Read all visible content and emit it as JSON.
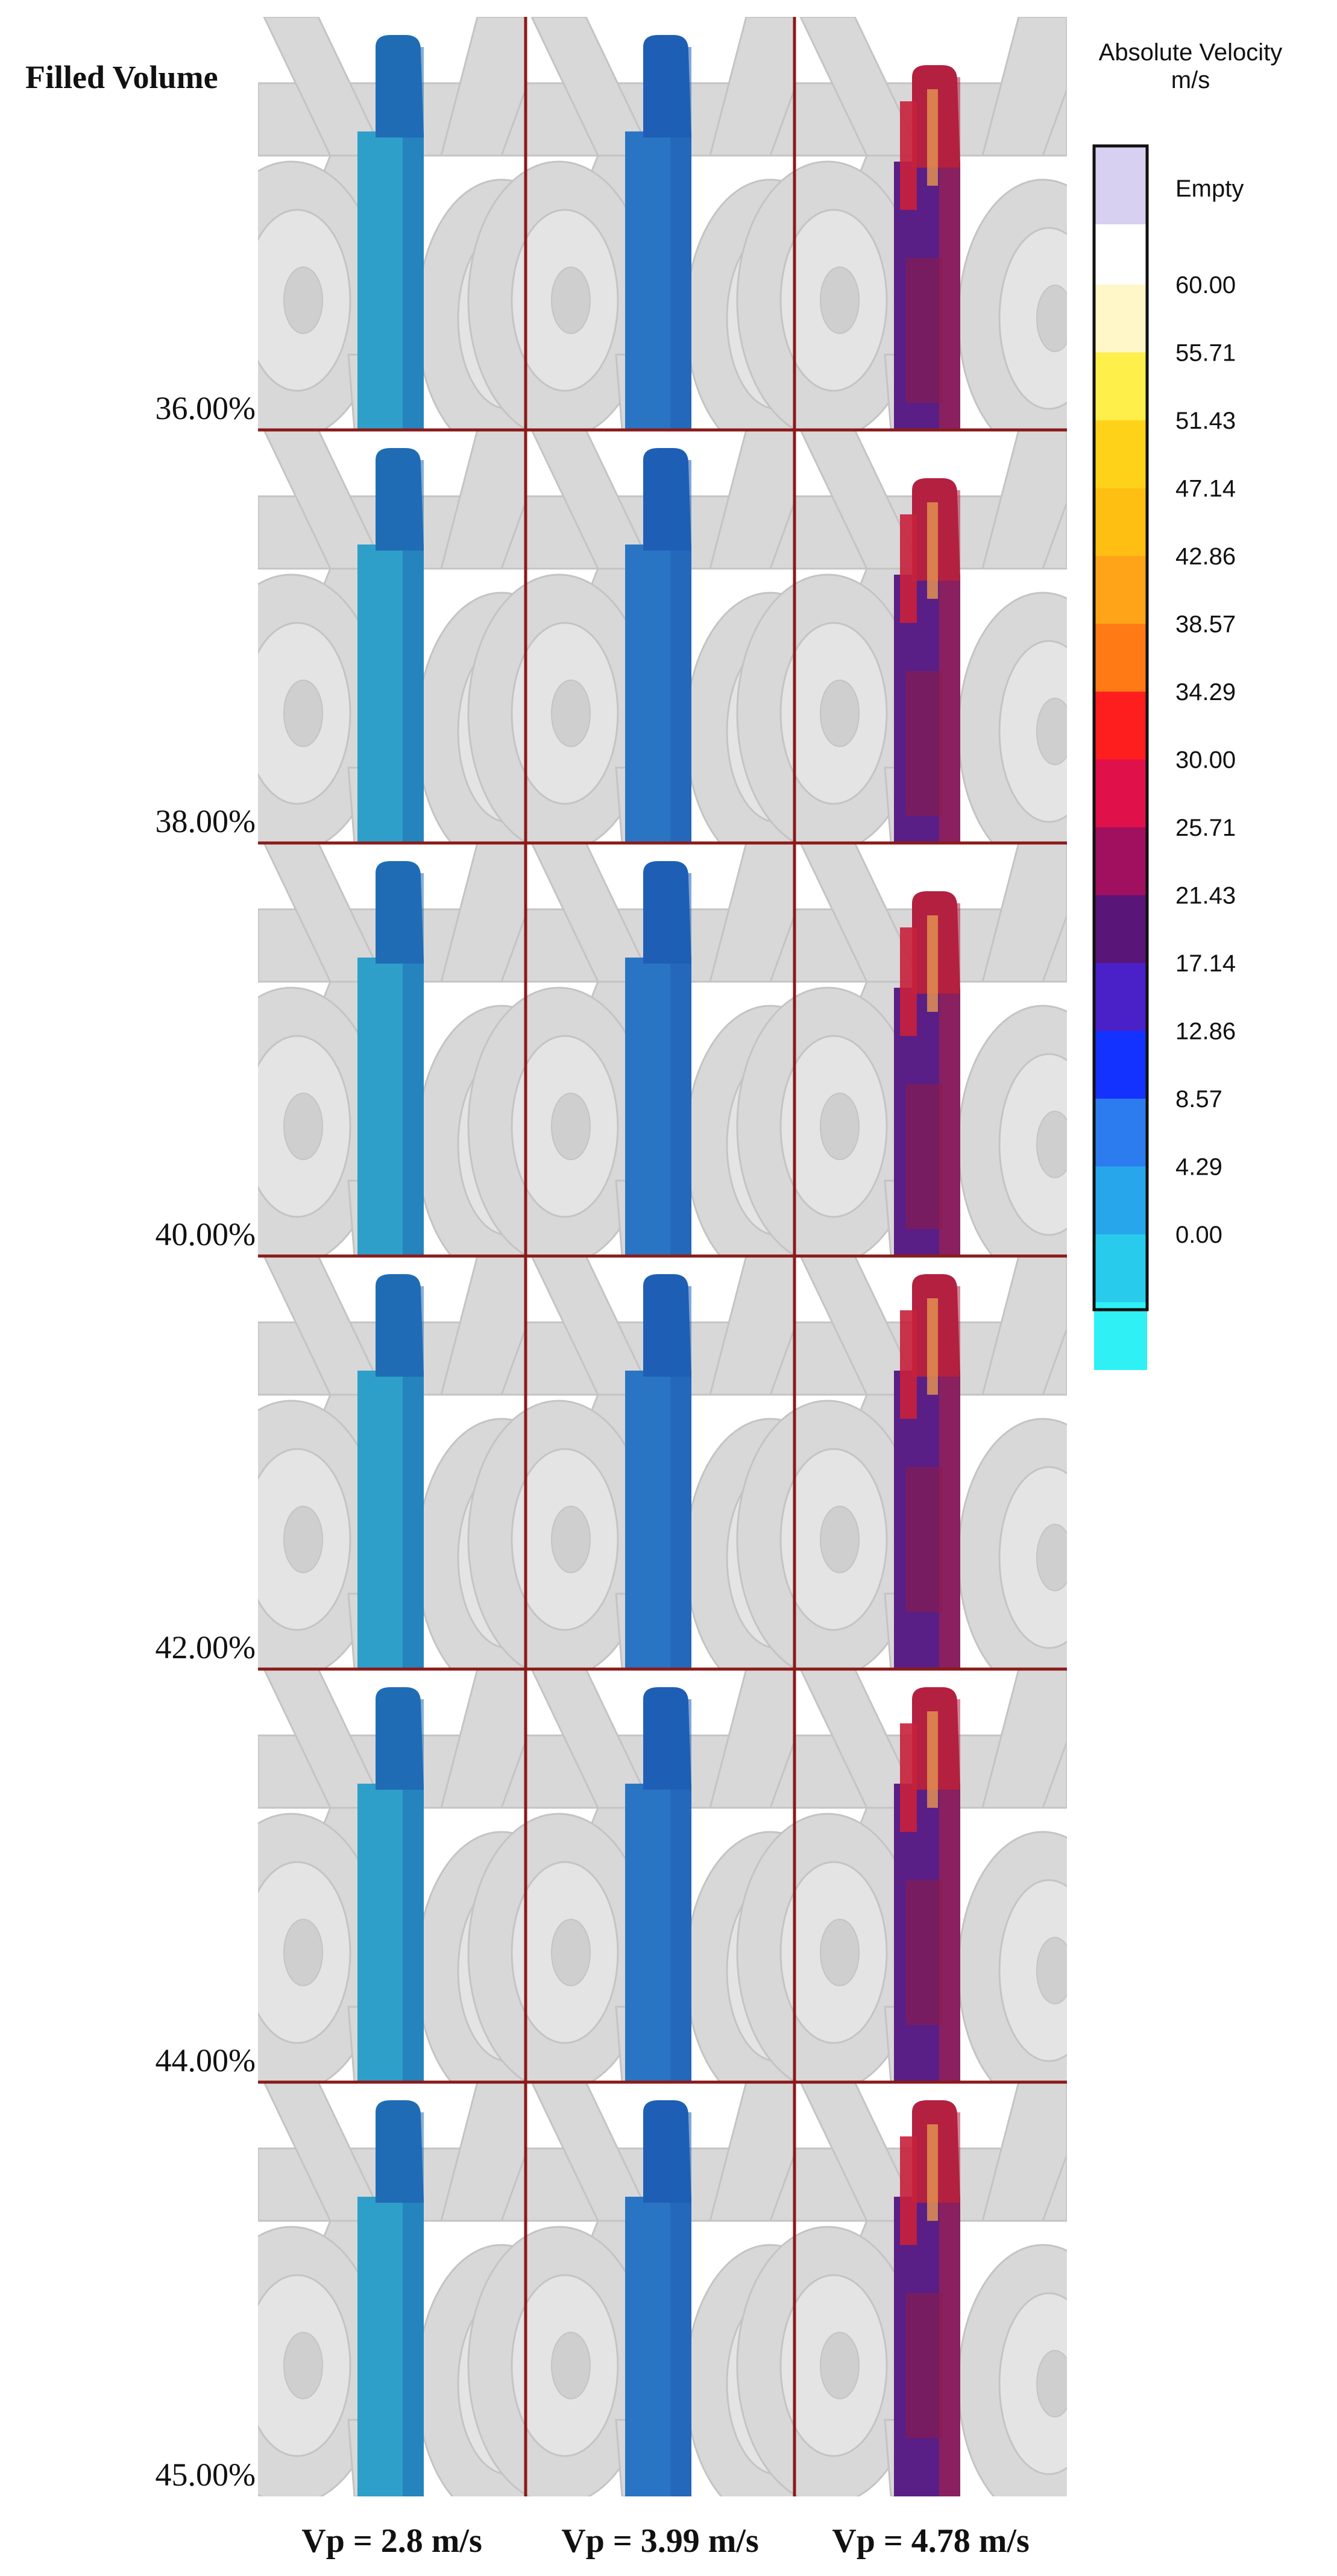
{
  "figure": {
    "row_label_heading": "Filled Volume",
    "rows": [
      {
        "label": "36.00%"
      },
      {
        "label": "38.00%"
      },
      {
        "label": "40.00%"
      },
      {
        "label": "42.00%"
      },
      {
        "label": "44.00%"
      },
      {
        "label": "45.00%"
      }
    ],
    "columns": [
      {
        "label": "Vp = 2.8 m/s",
        "fluid_color": "#2e9fc9",
        "top_color": "#1f6cb5"
      },
      {
        "label": "Vp = 3.99 m/s",
        "fluid_color": "#2a74c4",
        "top_color": "#1e5fb5"
      },
      {
        "label": "Vp = 4.78 m/s",
        "fluid_color": "#5a1f86",
        "top_color": "#b32040"
      }
    ],
    "legend": {
      "title_line1": "Absolute Velocity",
      "title_line2": "m/s",
      "empty_label": "Empty",
      "empty_color": "#d7d0f0",
      "top_color": "#ffffff",
      "stops": [
        {
          "value": "60.00",
          "color": "#fff7c8"
        },
        {
          "value": "55.71",
          "color": "#ffef4a"
        },
        {
          "value": "51.43",
          "color": "#ffd21a"
        },
        {
          "value": "47.14",
          "color": "#ffbf12"
        },
        {
          "value": "42.86",
          "color": "#ffa418"
        },
        {
          "value": "38.57",
          "color": "#ff7a14"
        },
        {
          "value": "34.29",
          "color": "#ff1e1e"
        },
        {
          "value": "30.00",
          "color": "#e0104a"
        },
        {
          "value": "25.71",
          "color": "#a0105e"
        },
        {
          "value": "21.43",
          "color": "#5a1578"
        },
        {
          "value": "17.14",
          "color": "#4a20c8"
        },
        {
          "value": "12.86",
          "color": "#1432ff"
        },
        {
          "value": "8.57",
          "color": "#2c7cf0"
        },
        {
          "value": "4.29",
          "color": "#28a6ec"
        },
        {
          "value": "0.00",
          "color": "#28cbec"
        },
        {
          "value": "",
          "color": "#2ef0f5"
        }
      ]
    },
    "colors": {
      "grid_line": "#8b1a1a",
      "background": "#ffffff",
      "mechanism_gray": "#d8d8d8",
      "mechanism_edge": "#c4c4c4"
    }
  }
}
